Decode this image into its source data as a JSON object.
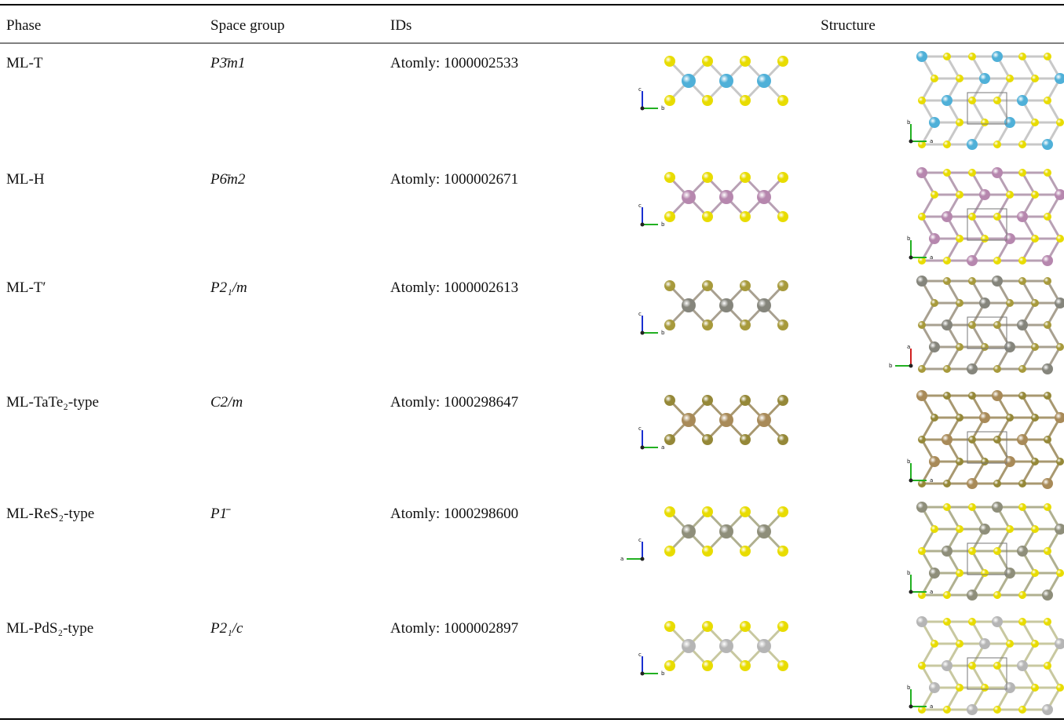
{
  "table": {
    "header": [
      "Phase",
      "Space group",
      "IDs",
      "Structure"
    ],
    "rows": [
      {
        "phase": "ML-T",
        "space_group": "P3̄m1",
        "id": "Atomly: 1000002533",
        "side_axes": [
          "c",
          "b"
        ],
        "top_axes": [
          "b",
          "a"
        ]
      },
      {
        "phase": "ML-H",
        "space_group": "P6̄m2",
        "id": "Atomly: 1000002671",
        "side_axes": [
          "c",
          "b"
        ],
        "top_axes": [
          "b",
          "a"
        ]
      },
      {
        "phase": "ML-T′",
        "space_group": "P2₁/m",
        "id": "Atomly: 1000002613",
        "side_axes": [
          "c",
          "b"
        ],
        "top_axes": [
          "a",
          "b"
        ]
      },
      {
        "phase": "ML-TaTe₂-type",
        "space_group": "C2/m",
        "id": "Atomly: 1000298647",
        "side_axes": [
          "c",
          "a"
        ],
        "top_axes": [
          "b",
          "a"
        ]
      },
      {
        "phase": "ML-ReS₂-type",
        "space_group": "P1̄",
        "id": "Atomly: 1000298600",
        "side_axes": [
          "c",
          "a"
        ],
        "top_axes": [
          "b",
          "a"
        ]
      },
      {
        "phase": "ML-PdS₂-type",
        "space_group": "P2₁/c",
        "id": "Atomly: 1000002897",
        "side_axes": [
          "c",
          "b"
        ],
        "top_axes": [
          "b",
          "a"
        ]
      }
    ]
  }
}
